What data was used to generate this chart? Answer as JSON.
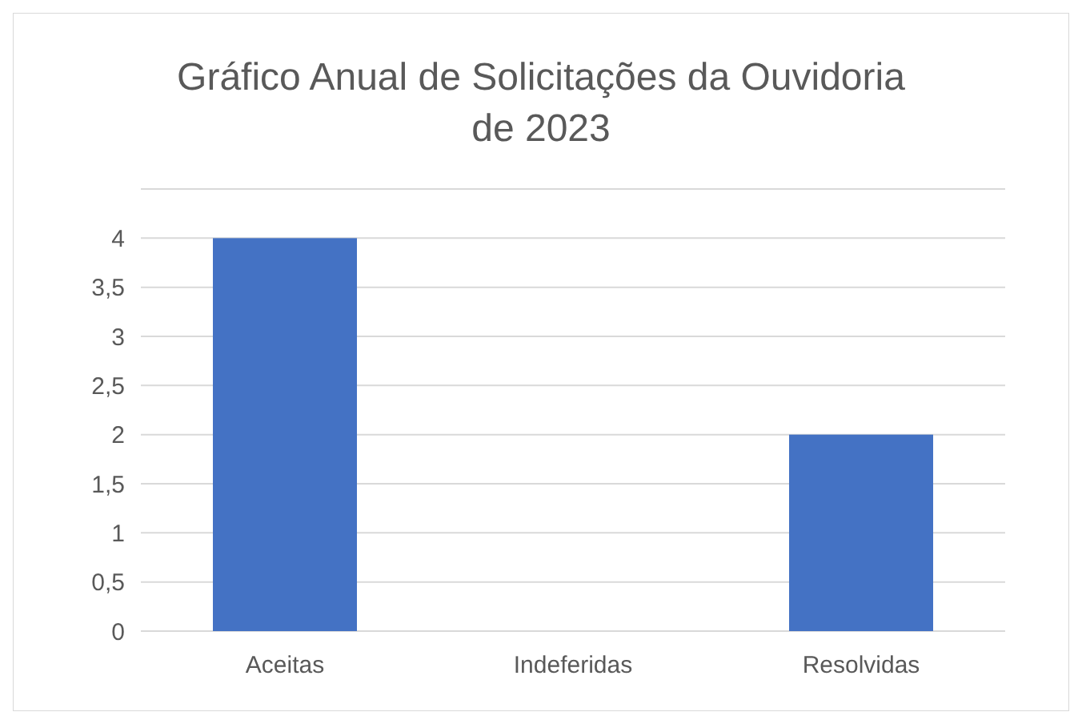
{
  "chart_data": {
    "type": "bar",
    "title": "Gráfico Anual de Solicitações da Ouvidoria de 2023",
    "categories": [
      "Aceitas",
      "Indeferidas",
      "Resolvidas"
    ],
    "values": [
      4,
      0,
      2
    ],
    "color": "#4472c4",
    "ylim": [
      0,
      4.5
    ],
    "yticks": [
      0,
      {
        "value": 0.5,
        "label": "0,5"
      },
      1,
      {
        "value": 1.5,
        "label": "1,5"
      },
      2,
      {
        "value": 2.5,
        "label": "2,5"
      },
      3,
      {
        "value": 3.5,
        "label": "3,5"
      },
      4,
      {
        "value": 4.5,
        "label": null
      }
    ],
    "grid": "y"
  }
}
